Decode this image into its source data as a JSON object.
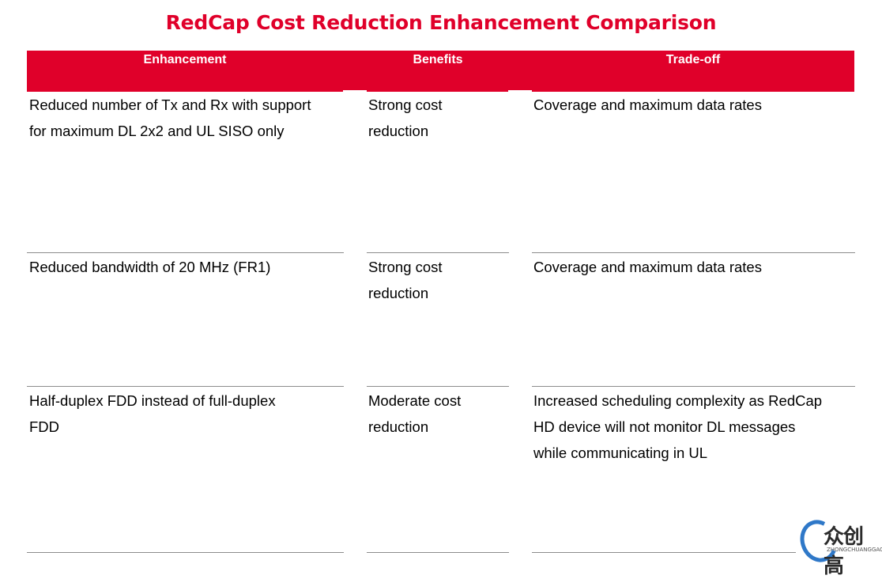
{
  "title": "RedCap Cost Reduction Enhancement Comparison",
  "colors": {
    "accent": "#e0002a",
    "rule": "#8c8c8c",
    "logo_blue": "#2f78c8"
  },
  "table": {
    "headers": [
      "Enhancement",
      "Benefits",
      "Trade-off"
    ],
    "rows": [
      {
        "enhancement": [
          "Reduced number of Tx and Rx with support",
          "for maximum  DL 2x2 and UL SISO only"
        ],
        "benefits": [
          "Strong cost",
          "reduction"
        ],
        "tradeoff": [
          "Coverage and maximum  data rates"
        ]
      },
      {
        "enhancement": [
          "Reduced bandwidth of 20 MHz (FR1)"
        ],
        "benefits": [
          "Strong cost",
          "reduction"
        ],
        "tradeoff": [
          "Coverage and maximum  data rates"
        ]
      },
      {
        "enhancement": [
          "Half-duplex FDD instead of full-duplex",
          "FDD"
        ],
        "benefits": [
          "Moderate cost",
          "reduction"
        ],
        "tradeoff": [
          "Increased scheduling complexity as RedCap",
          "HD device will not monitor DL messages",
          "while communicating  in UL"
        ]
      }
    ]
  },
  "watermark": {
    "text_cn": "众创高",
    "text_en": "ZHONGCHUANGGAO"
  }
}
